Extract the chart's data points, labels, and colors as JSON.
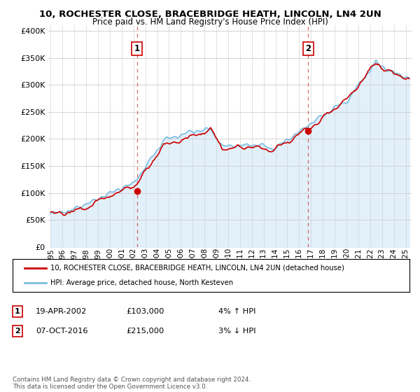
{
  "title_line1": "10, ROCHESTER CLOSE, BRACEBRIDGE HEATH, LINCOLN, LN4 2UN",
  "title_line2": "Price paid vs. HM Land Registry's House Price Index (HPI)",
  "ytick_vals": [
    0,
    50000,
    100000,
    150000,
    200000,
    250000,
    300000,
    350000,
    400000
  ],
  "ylim": [
    0,
    410000
  ],
  "xlim_start": 1994.8,
  "xlim_end": 2025.5,
  "hpi_color": "#7bbde0",
  "hpi_fill_color": "#d6eaf8",
  "price_color": "#cc0000",
  "dashed_line_color": "#cc0000",
  "dashed_line_alpha": 0.6,
  "sale1_x": 2002.29,
  "sale1_y": 103000,
  "sale2_x": 2016.76,
  "sale2_y": 215000,
  "legend_label1": "10, ROCHESTER CLOSE, BRACEBRIDGE HEATH, LINCOLN, LN4 2UN (detached house)",
  "legend_label2": "HPI: Average price, detached house, North Kesteven",
  "annotation1_date": "19-APR-2002",
  "annotation1_price": "£103,000",
  "annotation1_hpi": "4% ↑ HPI",
  "annotation2_date": "07-OCT-2016",
  "annotation2_price": "£215,000",
  "annotation2_hpi": "3% ↓ HPI",
  "footnote": "Contains HM Land Registry data © Crown copyright and database right 2024.\nThis data is licensed under the Open Government Licence v3.0.",
  "background_color": "#ffffff",
  "grid_color": "#cccccc"
}
